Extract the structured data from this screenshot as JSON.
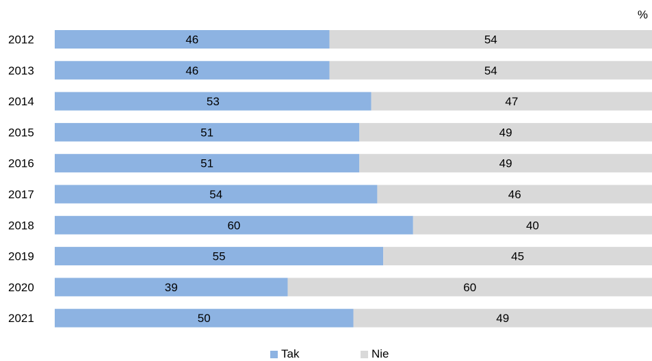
{
  "chart_data": {
    "type": "bar",
    "orientation": "horizontal",
    "stacked": true,
    "unit": "%",
    "categories": [
      "2012",
      "2013",
      "2014",
      "2015",
      "2016",
      "2017",
      "2018",
      "2019",
      "2020",
      "2021"
    ],
    "series": [
      {
        "name": "Tak",
        "color": "#8db3e2",
        "values": [
          46,
          46,
          53,
          51,
          51,
          54,
          60,
          55,
          39,
          50
        ]
      },
      {
        "name": "Nie",
        "color": "#d9d9d9",
        "values": [
          54,
          54,
          47,
          49,
          49,
          46,
          40,
          45,
          60,
          49
        ]
      }
    ],
    "xlim": [
      0,
      100
    ],
    "grid": false,
    "legend_position": "bottom-center"
  }
}
